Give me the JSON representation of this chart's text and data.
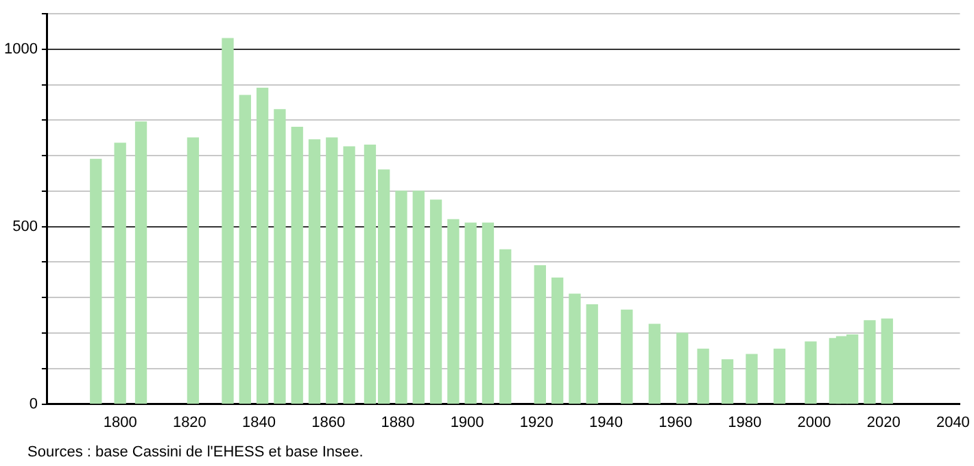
{
  "chart_data": {
    "type": "bar",
    "x": [
      1793,
      1800,
      1806,
      1821,
      1831,
      1836,
      1841,
      1846,
      1851,
      1856,
      1861,
      1866,
      1872,
      1876,
      1881,
      1886,
      1891,
      1896,
      1901,
      1906,
      1911,
      1921,
      1926,
      1931,
      1936,
      1946,
      1954,
      1962,
      1968,
      1975,
      1982,
      1990,
      1999,
      2006,
      2008,
      2011,
      2016,
      2021
    ],
    "values": [
      690,
      735,
      795,
      750,
      1030,
      870,
      890,
      830,
      780,
      745,
      750,
      725,
      730,
      660,
      600,
      600,
      575,
      520,
      510,
      510,
      435,
      390,
      355,
      310,
      280,
      265,
      225,
      200,
      155,
      125,
      140,
      155,
      175,
      185,
      190,
      195,
      235,
      240
    ],
    "color": "#aee3ae",
    "xlim": [
      1779,
      2042
    ],
    "xticks": [
      1800,
      1820,
      1840,
      1860,
      1880,
      1900,
      1920,
      1940,
      1960,
      1980,
      2000,
      2020,
      2040
    ],
    "ylim": [
      0,
      1100
    ],
    "yticks": [
      0,
      {
        "value": 100,
        "label": null
      },
      {
        "value": 200,
        "label": null
      },
      {
        "value": 300,
        "label": null
      },
      {
        "value": 400,
        "label": null
      },
      500,
      {
        "value": 600,
        "label": null
      },
      {
        "value": 700,
        "label": null
      },
      {
        "value": 800,
        "label": null
      },
      {
        "value": 900,
        "label": null
      },
      1000,
      {
        "value": 1100,
        "label": null
      }
    ],
    "grid": "y",
    "annotations": [
      "Sources : base Cassini de l'EHESS et base Insee."
    ]
  }
}
